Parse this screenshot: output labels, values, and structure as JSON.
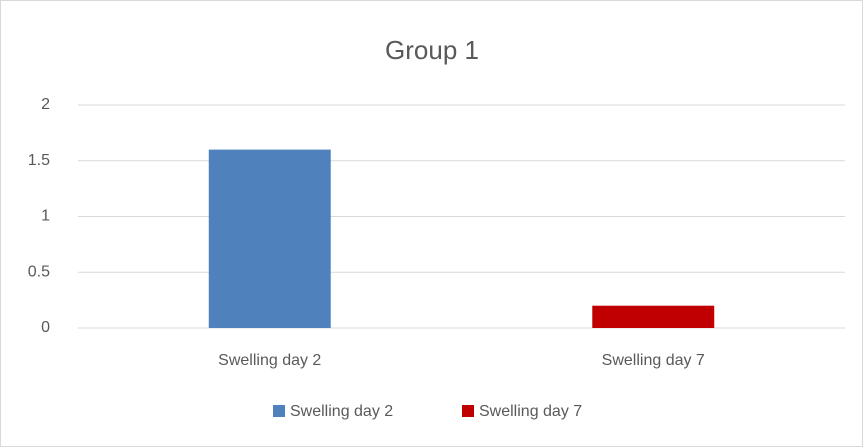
{
  "chart_data": {
    "type": "bar",
    "title": "Group 1",
    "categories": [
      "Swelling day 2",
      "Swelling day 7"
    ],
    "values": [
      1.6,
      0.2
    ],
    "colors": [
      "#4f81bd",
      "#c00000"
    ],
    "ylim": [
      0,
      2
    ],
    "yticks": [
      0,
      0.5,
      1,
      1.5,
      2
    ],
    "grid": true,
    "legend": "bottom"
  }
}
